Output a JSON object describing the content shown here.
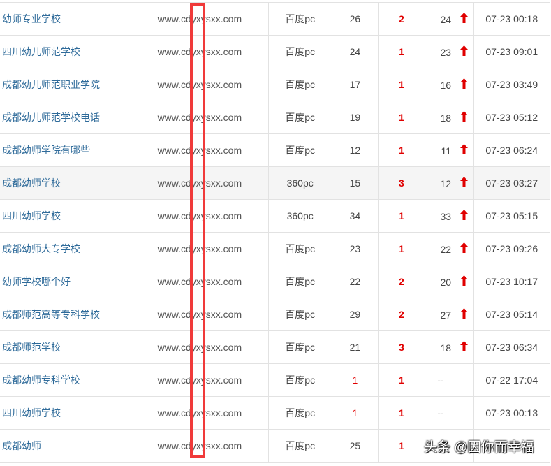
{
  "rows": [
    {
      "keyword": "幼师专业学校",
      "domain": "www.cdyxysxx.com",
      "engine": "百度pc",
      "original": "26",
      "change": "2",
      "current": "24",
      "trend": "up",
      "time": "07-23 00:18"
    },
    {
      "keyword": "四川幼儿师范学校",
      "domain": "www.cdyxysxx.com",
      "engine": "百度pc",
      "original": "24",
      "change": "1",
      "current": "23",
      "trend": "up",
      "time": "07-23 09:01"
    },
    {
      "keyword": "成都幼儿师范职业学院",
      "domain": "www.cdyxysxx.com",
      "engine": "百度pc",
      "original": "17",
      "change": "1",
      "current": "16",
      "trend": "up",
      "time": "07-23 03:49"
    },
    {
      "keyword": "成都幼儿师范学校电话",
      "domain": "www.cdyxysxx.com",
      "engine": "百度pc",
      "original": "19",
      "change": "1",
      "current": "18",
      "trend": "up",
      "time": "07-23 05:12"
    },
    {
      "keyword": "成都幼师学院有哪些",
      "domain": "www.cdyxysxx.com",
      "engine": "百度pc",
      "original": "12",
      "change": "1",
      "current": "11",
      "trend": "up",
      "time": "07-23 06:24"
    },
    {
      "keyword": "成都幼师学校",
      "domain": "www.cdyxysxx.com",
      "engine": "360pc",
      "original": "15",
      "change": "3",
      "current": "12",
      "trend": "up",
      "time": "07-23 03:27",
      "highlight": true
    },
    {
      "keyword": "四川幼师学校",
      "domain": "www.cdyxysxx.com",
      "engine": "360pc",
      "original": "34",
      "change": "1",
      "current": "33",
      "trend": "up",
      "time": "07-23 05:15"
    },
    {
      "keyword": "成都幼师大专学校",
      "domain": "www.cdyxysxx.com",
      "engine": "百度pc",
      "original": "23",
      "change": "1",
      "current": "22",
      "trend": "up",
      "time": "07-23 09:26"
    },
    {
      "keyword": "幼师学校哪个好",
      "domain": "www.cdyxysxx.com",
      "engine": "百度pc",
      "original": "22",
      "change": "2",
      "current": "20",
      "trend": "up",
      "time": "07-23 10:17"
    },
    {
      "keyword": "成都师范高等专科学校",
      "domain": "www.cdyxysxx.com",
      "engine": "百度pc",
      "original": "29",
      "change": "2",
      "current": "27",
      "trend": "up",
      "time": "07-23 05:14"
    },
    {
      "keyword": "成都师范学校",
      "domain": "www.cdyxysxx.com",
      "engine": "百度pc",
      "original": "21",
      "change": "3",
      "current": "18",
      "trend": "up",
      "time": "07-23 06:34"
    },
    {
      "keyword": "成都幼师专科学校",
      "domain": "www.cdyxysxx.com",
      "engine": "百度pc",
      "original": "1",
      "original_red": true,
      "change": "1",
      "current": "--",
      "trend": "",
      "time": "07-22 17:04"
    },
    {
      "keyword": "四川幼师学校",
      "domain": "www.cdyxysxx.com",
      "engine": "百度pc",
      "original": "1",
      "original_red": true,
      "change": "1",
      "current": "--",
      "trend": "",
      "time": "07-23 00:13"
    },
    {
      "keyword": "成都幼师",
      "domain": "www.cdyxysxx.com",
      "engine": "百度pc",
      "original": "25",
      "change": "1",
      "current": "",
      "trend": "",
      "time": ""
    }
  ],
  "colors": {
    "keyword": "#2f6b9a",
    "accent_red": "#e00000",
    "mask": "#f03a3a"
  },
  "icons": {
    "trend_up": "arrow-up-icon"
  },
  "watermark": "头条 @因你而幸福"
}
